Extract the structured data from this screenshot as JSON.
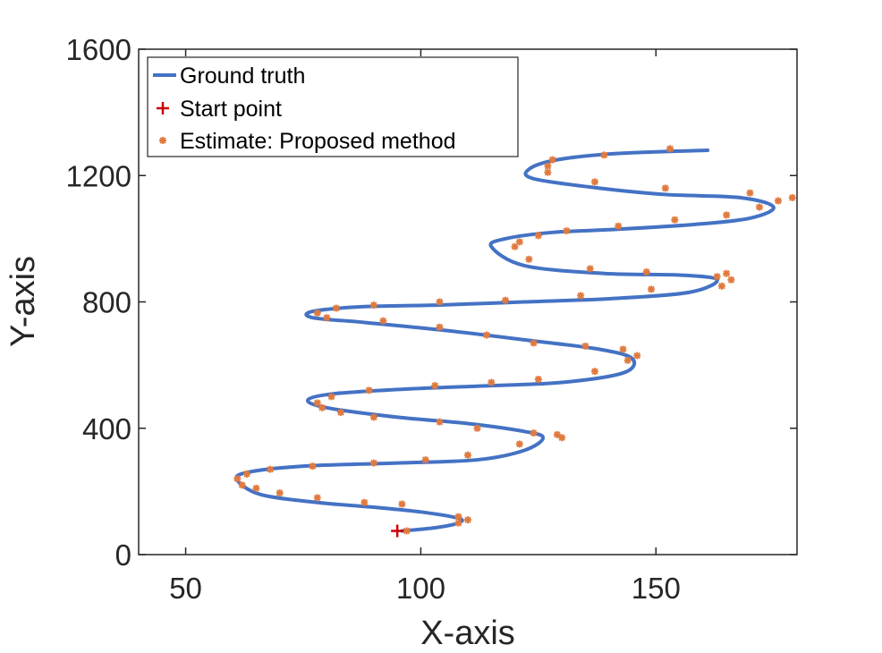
{
  "chart_data": {
    "type": "line",
    "title": "",
    "xlabel": "X-axis",
    "ylabel": "Y-axis",
    "xlim": [
      40,
      180
    ],
    "ylim": [
      0,
      1600
    ],
    "x_ticks": [
      "50",
      "100",
      "150"
    ],
    "y_ticks": [
      "0",
      "400",
      "800",
      "1200",
      "1600"
    ],
    "grid": false,
    "legend_position": "top-left",
    "legend": [
      "Ground truth",
      "Start point",
      "Estimate: Proposed method"
    ],
    "colors": {
      "ground_truth": "#4472C4",
      "start_point": "#CC0000",
      "estimate": "#E07A3F",
      "axes": "#262626"
    },
    "start_point": {
      "x": 95,
      "y": 75
    },
    "series": [
      {
        "name": "Ground truth",
        "type": "line",
        "points": [
          [
            96,
            75
          ],
          [
            103,
            85
          ],
          [
            108,
            100
          ],
          [
            108,
            115
          ],
          [
            100,
            135
          ],
          [
            90,
            150
          ],
          [
            78,
            165
          ],
          [
            66,
            190
          ],
          [
            61,
            235
          ],
          [
            63,
            260
          ],
          [
            75,
            280
          ],
          [
            95,
            290
          ],
          [
            112,
            300
          ],
          [
            122,
            330
          ],
          [
            126,
            370
          ],
          [
            122,
            390
          ],
          [
            110,
            415
          ],
          [
            95,
            435
          ],
          [
            80,
            465
          ],
          [
            76,
            490
          ],
          [
            82,
            510
          ],
          [
            98,
            525
          ],
          [
            115,
            535
          ],
          [
            130,
            545
          ],
          [
            143,
            575
          ],
          [
            145,
            620
          ],
          [
            138,
            650
          ],
          [
            122,
            680
          ],
          [
            105,
            710
          ],
          [
            88,
            735
          ],
          [
            77,
            750
          ],
          [
            77,
            770
          ],
          [
            88,
            785
          ],
          [
            104,
            790
          ],
          [
            122,
            800
          ],
          [
            140,
            810
          ],
          [
            157,
            830
          ],
          [
            163,
            870
          ],
          [
            155,
            885
          ],
          [
            139,
            890
          ],
          [
            122,
            915
          ],
          [
            115,
            975
          ],
          [
            118,
            1000
          ],
          [
            128,
            1020
          ],
          [
            142,
            1030
          ],
          [
            158,
            1045
          ],
          [
            170,
            1065
          ],
          [
            175,
            1100
          ],
          [
            168,
            1130
          ],
          [
            152,
            1140
          ],
          [
            138,
            1160
          ],
          [
            124,
            1190
          ],
          [
            123,
            1220
          ],
          [
            129,
            1250
          ],
          [
            142,
            1270
          ],
          [
            161,
            1280
          ]
        ]
      },
      {
        "name": "Estimate: Proposed method",
        "type": "scatter",
        "points": [
          [
            97,
            75
          ],
          [
            108,
            100
          ],
          [
            110,
            110
          ],
          [
            108,
            120
          ],
          [
            96,
            160
          ],
          [
            88,
            165
          ],
          [
            78,
            180
          ],
          [
            70,
            195
          ],
          [
            65,
            210
          ],
          [
            62,
            220
          ],
          [
            61,
            240
          ],
          [
            63,
            255
          ],
          [
            68,
            270
          ],
          [
            77,
            280
          ],
          [
            90,
            290
          ],
          [
            101,
            300
          ],
          [
            110,
            315
          ],
          [
            121,
            350
          ],
          [
            130,
            370
          ],
          [
            129,
            380
          ],
          [
            124,
            385
          ],
          [
            112,
            400
          ],
          [
            104,
            420
          ],
          [
            90,
            435
          ],
          [
            83,
            450
          ],
          [
            79,
            465
          ],
          [
            78,
            480
          ],
          [
            81,
            500
          ],
          [
            89,
            520
          ],
          [
            103,
            535
          ],
          [
            115,
            545
          ],
          [
            125,
            555
          ],
          [
            137,
            580
          ],
          [
            144,
            615
          ],
          [
            146,
            630
          ],
          [
            143,
            650
          ],
          [
            135,
            660
          ],
          [
            124,
            670
          ],
          [
            114,
            695
          ],
          [
            104,
            720
          ],
          [
            92,
            740
          ],
          [
            80,
            750
          ],
          [
            78,
            765
          ],
          [
            82,
            780
          ],
          [
            90,
            790
          ],
          [
            104,
            800
          ],
          [
            118,
            805
          ],
          [
            134,
            820
          ],
          [
            149,
            840
          ],
          [
            164,
            850
          ],
          [
            166,
            870
          ],
          [
            165,
            890
          ],
          [
            163,
            880
          ],
          [
            148,
            895
          ],
          [
            136,
            905
          ],
          [
            123,
            935
          ],
          [
            120,
            975
          ],
          [
            121,
            990
          ],
          [
            125,
            1010
          ],
          [
            131,
            1025
          ],
          [
            142,
            1040
          ],
          [
            154,
            1060
          ],
          [
            165,
            1075
          ],
          [
            172,
            1100
          ],
          [
            176,
            1120
          ],
          [
            179,
            1130
          ],
          [
            170,
            1145
          ],
          [
            152,
            1160
          ],
          [
            137,
            1180
          ],
          [
            127,
            1210
          ],
          [
            127,
            1230
          ],
          [
            128,
            1250
          ],
          [
            139,
            1265
          ],
          [
            153,
            1285
          ]
        ]
      }
    ]
  }
}
